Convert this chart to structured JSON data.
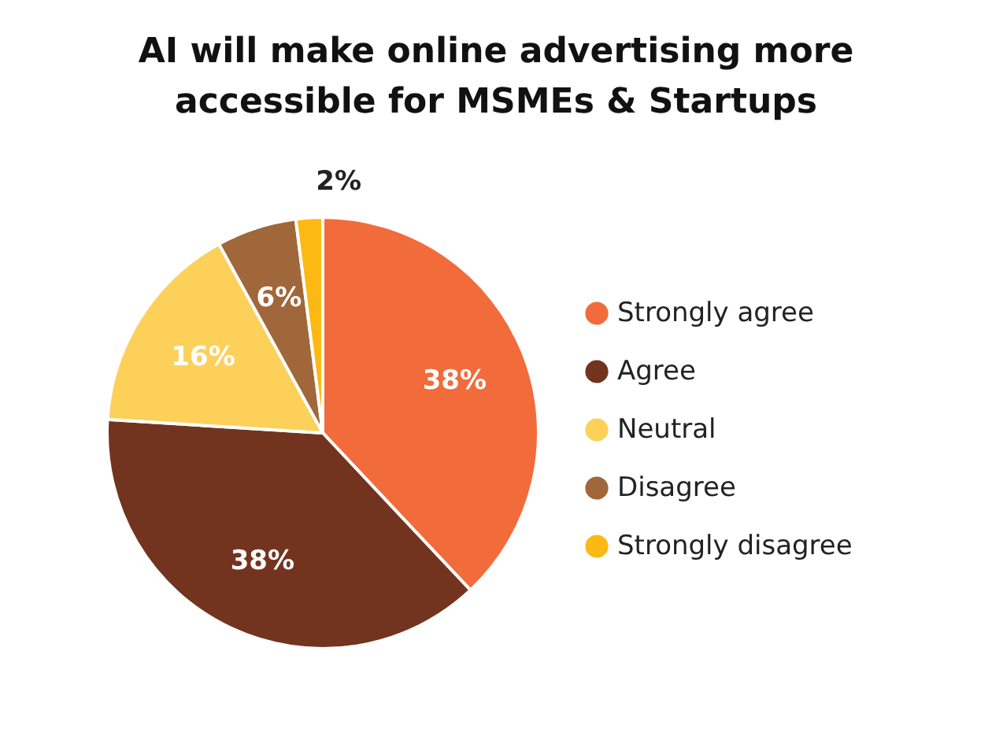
{
  "chart_data": {
    "type": "pie",
    "title": "AI will make online advertising more accessible for MSMEs & Startups",
    "categories": [
      "Strongly agree",
      "Agree",
      "Neutral",
      "Disagree",
      "Strongly disagree"
    ],
    "values": [
      38,
      38,
      16,
      6,
      2
    ],
    "colors": [
      "#f26b3a",
      "#73341f",
      "#fdd05a",
      "#a0673a",
      "#fdb913"
    ],
    "value_labels": [
      "38%",
      "38%",
      "16%",
      "6%",
      "2%"
    ],
    "legend": "right"
  }
}
